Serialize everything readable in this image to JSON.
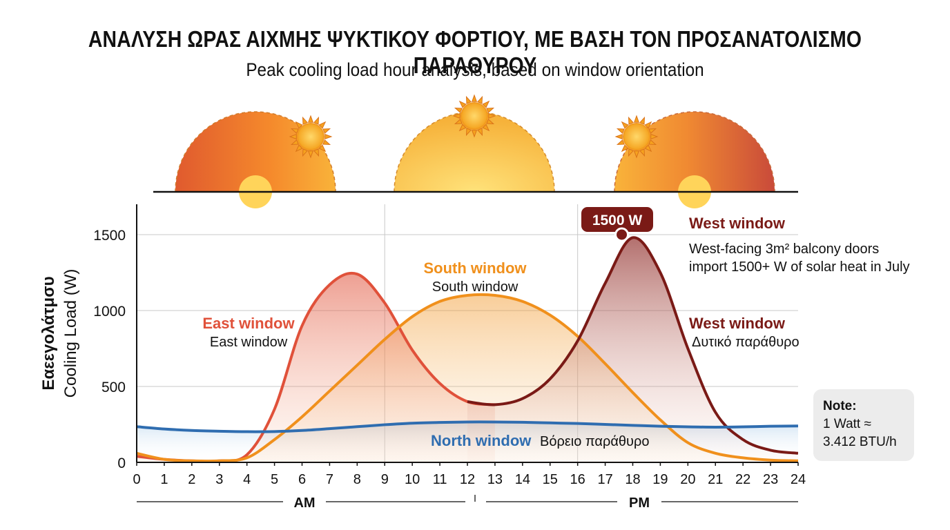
{
  "chart_data": {
    "type": "line",
    "title": "ΑΝΑΛΥΣΗ ΩΡΑΣ ΑΙΧΜΗΣ ΨΥΚΤΙΚΟΥ ΦΟΡΤΙΟΥ, ΜΕ ΒΑΣΗ ΤΟΝ ΠΡΟΣΑΝΑΤΟΛΙΣΜΟ ΠΑΡΑΘΥΡΟΥ",
    "subtitle": "Peak cooling load hour analysis, based on window orientation",
    "ylabel_greek": "Εαεεγολάτμσυ",
    "ylabel": "Cooling Load (W)",
    "xlabel_am": "AM",
    "xlabel_pm": "PM",
    "x_ticks": [
      "0",
      "1",
      "2",
      "3",
      "4",
      "5",
      "6",
      "7",
      "8",
      "9",
      "10",
      "11",
      "12",
      "13",
      "14",
      "15",
      "16",
      "17",
      "18",
      "19",
      "20",
      "21",
      "22",
      "23",
      "24"
    ],
    "y_ticks": [
      "0",
      "500",
      "1000",
      "1500"
    ],
    "ylim": [
      0,
      1700
    ],
    "xlim": [
      0,
      24
    ],
    "grid": true,
    "series": [
      {
        "name": "East window",
        "color": "#e0513a",
        "x": [
          0,
          1,
          2,
          3,
          4,
          5,
          6,
          7,
          8,
          9,
          10,
          11,
          12,
          13,
          14,
          15,
          16,
          17,
          18,
          19,
          20,
          21,
          22,
          23,
          24
        ],
        "values": [
          40,
          20,
          10,
          10,
          50,
          350,
          900,
          1170,
          1240,
          1050,
          740,
          520,
          400,
          380,
          420,
          550,
          800,
          1180,
          1480,
          1250,
          750,
          330,
          150,
          80,
          60
        ]
      },
      {
        "name": "South window",
        "color": "#f0901c",
        "x": [
          0,
          1,
          2,
          3,
          4,
          5,
          6,
          7,
          8,
          9,
          10,
          11,
          12,
          13,
          14,
          15,
          16,
          17,
          18,
          19,
          20,
          21,
          22,
          23,
          24
        ],
        "values": [
          60,
          20,
          10,
          10,
          30,
          150,
          300,
          470,
          640,
          810,
          960,
          1060,
          1100,
          1100,
          1060,
          970,
          830,
          650,
          460,
          280,
          130,
          60,
          30,
          15,
          10
        ]
      },
      {
        "name": "West window",
        "color": "#7a1a16",
        "x": [
          0,
          1,
          2,
          3,
          4,
          5,
          6,
          7,
          8,
          9,
          10,
          11,
          12,
          13,
          14,
          15,
          16,
          17,
          18,
          19,
          20,
          21,
          22,
          23,
          24
        ],
        "values": [
          40,
          20,
          10,
          10,
          50,
          350,
          900,
          1170,
          1240,
          1050,
          740,
          520,
          400,
          380,
          420,
          550,
          800,
          1180,
          1480,
          1250,
          750,
          330,
          150,
          80,
          60
        ]
      },
      {
        "name": "North window",
        "color": "#2f6db0",
        "x": [
          0,
          1,
          2,
          3,
          4,
          5,
          6,
          7,
          8,
          9,
          10,
          11,
          12,
          13,
          14,
          15,
          16,
          17,
          18,
          19,
          20,
          21,
          22,
          23,
          24
        ],
        "values": [
          235,
          220,
          210,
          205,
          202,
          203,
          210,
          222,
          235,
          248,
          258,
          263,
          266,
          266,
          264,
          260,
          256,
          250,
          244,
          238,
          234,
          232,
          234,
          238,
          240
        ]
      }
    ],
    "annotations": {
      "peak_badge": "1500 W",
      "peak_x": 17.6,
      "peak_y": 1500,
      "east_label": "East window",
      "east_sub": "East window",
      "south_label": "South window",
      "south_sub": "South window",
      "west_top_label": "West window",
      "west_desc_1": "West-facing 3m² balcony doors",
      "west_desc_2": "import 1500+ W of solar heat in July",
      "west_mid_label": "West window",
      "west_mid_sub": "Δυτικό παράθυρο",
      "north_label": "North window",
      "north_sub": "Βόρειο παράθυρο"
    },
    "note_title": "Note:",
    "note_line1": "1 Watt ≈",
    "note_line2": "3.412 BTU/h"
  }
}
